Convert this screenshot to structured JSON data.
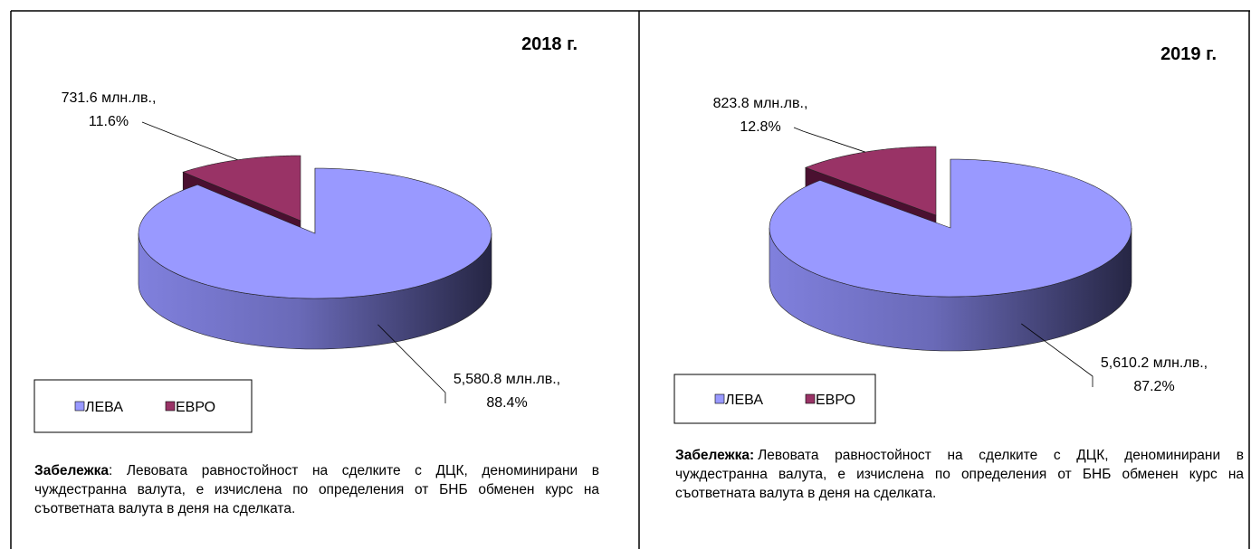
{
  "chart_data": [
    {
      "type": "pie",
      "title": "2018 г.",
      "categories": [
        "ЛЕВА",
        "ЕВРО"
      ],
      "values": [
        5580.8,
        731.6
      ],
      "value_labels": [
        "5,580.8 млн.лв.,",
        "731.6 млн.лв.,"
      ],
      "percents": [
        88.4,
        11.6
      ],
      "percent_labels": [
        "88.4%",
        "11.6%"
      ],
      "colors": [
        "#9999ff",
        "#993366"
      ],
      "note_label": "Забележка",
      "note": ": Левовата равностойност на сделките с ДЦК, деноминирани в чуждестранна валута, е изчислена по определения от БНБ обменен курс на съответната валута в деня на сделката."
    },
    {
      "type": "pie",
      "title": "2019 г.",
      "categories": [
        "ЛЕВА",
        "ЕВРО"
      ],
      "values": [
        5610.2,
        823.8
      ],
      "value_labels": [
        "5,610.2 млн.лв.,",
        "823.8 млн.лв.,"
      ],
      "percents": [
        87.2,
        12.8
      ],
      "percent_labels": [
        "87.2%",
        "12.8%"
      ],
      "colors": [
        "#9999ff",
        "#993366"
      ],
      "note_label": "Забележка:",
      "note": "Левовата равностойност на сделките с ДЦК, деноминирани в чуждестранна валута, е изчислена по определения от БНБ обменен курс на съответната валута в деня на сделката."
    }
  ]
}
